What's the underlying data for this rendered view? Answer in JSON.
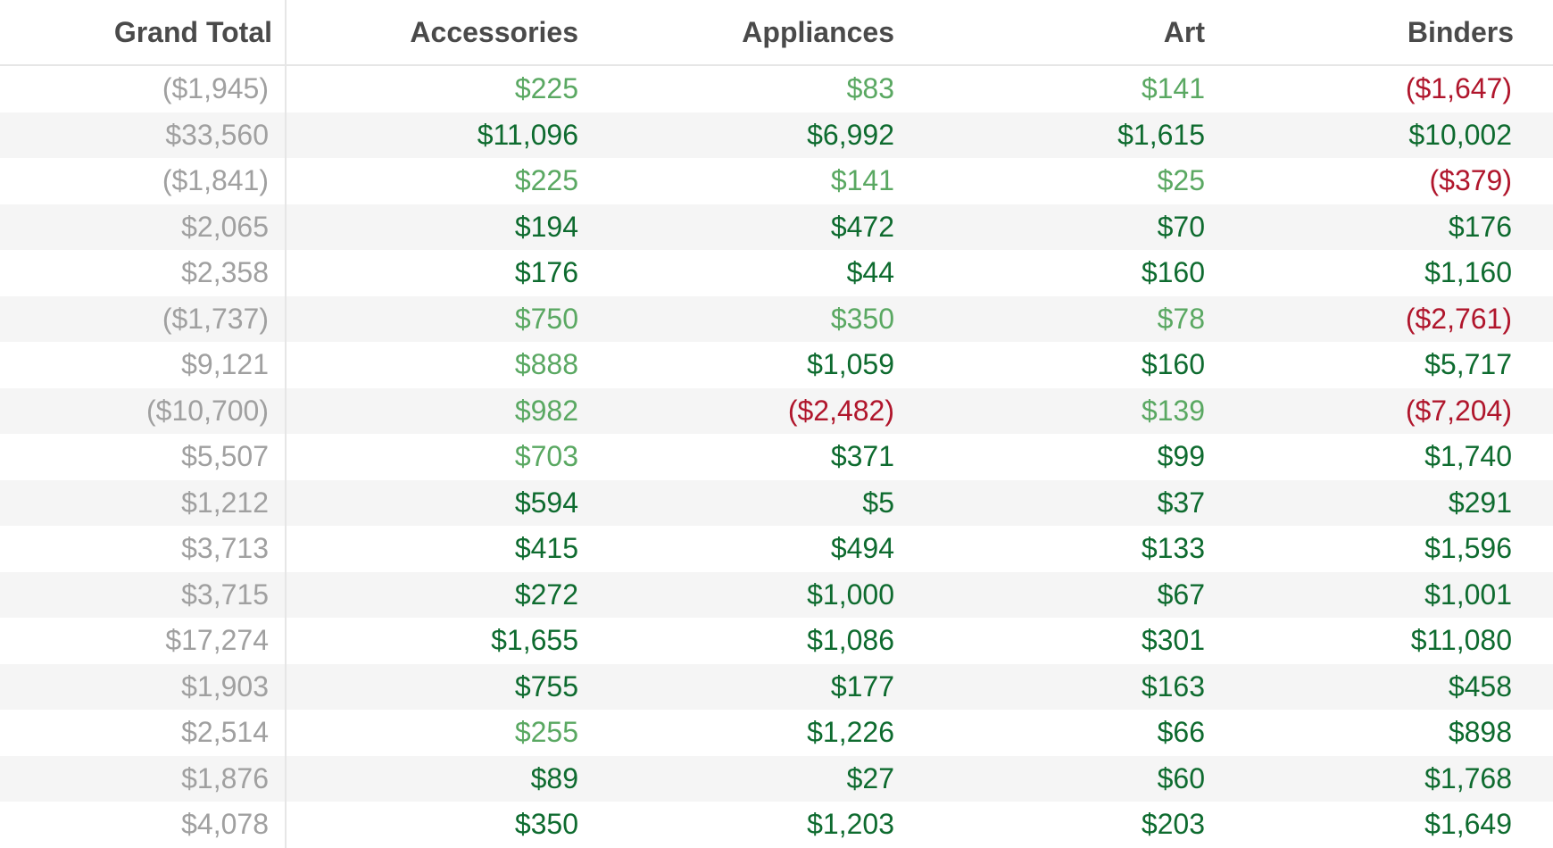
{
  "colors": {
    "header_text": "#4a4a4a",
    "total_text": "#a0a0a0",
    "strong_profit": "#0e6b2f",
    "light_profit": "#5aa862",
    "loss": "#b0162c",
    "band": "#f5f5f5",
    "divider": "#e6e6e6"
  },
  "chart_data": {
    "type": "table",
    "columns": [
      "Grand Total",
      "Accessories",
      "Appliances",
      "Art",
      "Binders"
    ],
    "rows": [
      [
        "($1,945)",
        "$225",
        "$83",
        "$141",
        "($1,647)"
      ],
      [
        "$33,560",
        "$11,096",
        "$6,992",
        "$1,615",
        "$10,002"
      ],
      [
        "($1,841)",
        "$225",
        "$141",
        "$25",
        "($379)"
      ],
      [
        "$2,065",
        "$194",
        "$472",
        "$70",
        "$176"
      ],
      [
        "$2,358",
        "$176",
        "$44",
        "$160",
        "$1,160"
      ],
      [
        "($1,737)",
        "$750",
        "$350",
        "$78",
        "($2,761)"
      ],
      [
        "$9,121",
        "$888",
        "$1,059",
        "$160",
        "$5,717"
      ],
      [
        "($10,700)",
        "$982",
        "($2,482)",
        "$139",
        "($7,204)"
      ],
      [
        "$5,507",
        "$703",
        "$371",
        "$99",
        "$1,740"
      ],
      [
        "$1,212",
        "$594",
        "$5",
        "$37",
        "$291"
      ],
      [
        "$3,713",
        "$415",
        "$494",
        "$133",
        "$1,596"
      ],
      [
        "$3,715",
        "$272",
        "$1,000",
        "$67",
        "$1,001"
      ],
      [
        "$17,274",
        "$1,655",
        "$1,086",
        "$301",
        "$11,080"
      ],
      [
        "$1,903",
        "$755",
        "$177",
        "$163",
        "$458"
      ],
      [
        "$2,514",
        "$255",
        "$1,226",
        "$66",
        "$898"
      ],
      [
        "$1,876",
        "$89",
        "$27",
        "$60",
        "$1,768"
      ],
      [
        "$4,078",
        "$350",
        "$1,203",
        "$203",
        "$1,649"
      ]
    ],
    "cell_levels": [
      [
        "total",
        "light",
        "light",
        "light",
        "neg"
      ],
      [
        "total",
        "strong",
        "strong",
        "strong",
        "strong"
      ],
      [
        "total",
        "light",
        "light",
        "light",
        "neg"
      ],
      [
        "total",
        "strong",
        "strong",
        "strong",
        "strong"
      ],
      [
        "total",
        "strong",
        "strong",
        "strong",
        "strong"
      ],
      [
        "total",
        "light",
        "light",
        "light",
        "neg"
      ],
      [
        "total",
        "light",
        "strong",
        "strong",
        "strong"
      ],
      [
        "total",
        "light",
        "neg",
        "light",
        "neg"
      ],
      [
        "total",
        "light",
        "strong",
        "strong",
        "strong"
      ],
      [
        "total",
        "strong",
        "strong",
        "strong",
        "strong"
      ],
      [
        "total",
        "strong",
        "strong",
        "strong",
        "strong"
      ],
      [
        "total",
        "strong",
        "strong",
        "strong",
        "strong"
      ],
      [
        "total",
        "strong",
        "strong",
        "strong",
        "strong"
      ],
      [
        "total",
        "strong",
        "strong",
        "strong",
        "strong"
      ],
      [
        "total",
        "light",
        "strong",
        "strong",
        "strong"
      ],
      [
        "total",
        "strong",
        "strong",
        "strong",
        "strong"
      ],
      [
        "total",
        "strong",
        "strong",
        "strong",
        "strong"
      ]
    ]
  }
}
